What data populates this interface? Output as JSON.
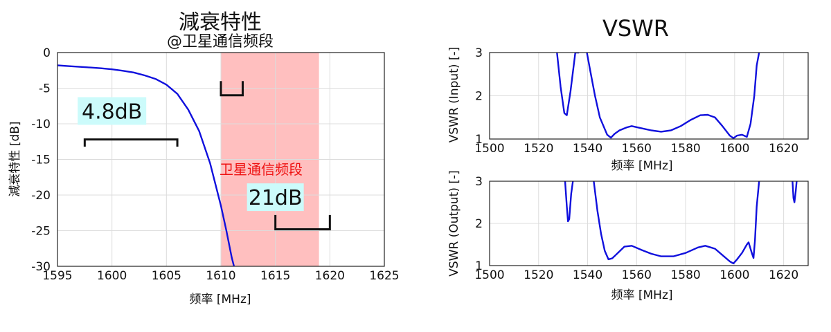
{
  "colors": {
    "curve": "#1010dd",
    "band": "#ffbfbf",
    "band_text": "#ee1111",
    "callout_bg": "#ccfbfb"
  },
  "chart_data": [
    {
      "id": "attenuation",
      "type": "line",
      "title": "減衰特性",
      "subtitle": "@卫星通信频段",
      "xlabel": "频率 [MHz]",
      "ylabel": "減衰特性 [dB]",
      "xlim": [
        1595,
        1625
      ],
      "ylim": [
        -30,
        0
      ],
      "xticks": [
        1595,
        1600,
        1605,
        1610,
        1615,
        1620,
        1625
      ],
      "yticks": [
        0,
        -5,
        -10,
        -15,
        -20,
        -25,
        -30
      ],
      "grid": true,
      "series": [
        {
          "x": [
            1595,
            1596,
            1597,
            1598,
            1599,
            1600,
            1601,
            1602,
            1603,
            1604,
            1605,
            1606,
            1607,
            1608,
            1609,
            1610,
            1610.5,
            1611,
            1611.2
          ],
          "y": [
            -1.8,
            -1.9,
            -2.0,
            -2.1,
            -2.2,
            -2.35,
            -2.55,
            -2.8,
            -3.2,
            -3.7,
            -4.5,
            -5.8,
            -8.0,
            -11.0,
            -15.5,
            -21.5,
            -25.0,
            -28.8,
            -30
          ]
        }
      ],
      "band": {
        "label": "卫星通信频段",
        "x": [
          1610,
          1619
        ]
      },
      "annotations": [
        {
          "text": "4.8dB",
          "x": 1600,
          "y": -8.2
        },
        {
          "text": "21dB",
          "x": 1615,
          "y": -20.3
        }
      ],
      "brackets": [
        {
          "x": [
            1597.5,
            1606
          ],
          "y": -12.2,
          "tick": 1.0,
          "dir": "down"
        },
        {
          "x": [
            1610,
            1612
          ],
          "y": -6.0,
          "tick": 2.0,
          "dir": "up"
        },
        {
          "x": [
            1615,
            1620
          ],
          "y": -24.8,
          "tick": 2.0,
          "dir": "up"
        }
      ]
    },
    {
      "id": "vswr_input",
      "type": "line",
      "group_title": "VSWR",
      "xlabel": "频率 [MHz]",
      "ylabel": "VSWR (Input) [-]",
      "xlim": [
        1500,
        1630
      ],
      "ylim": [
        1,
        3
      ],
      "xticks": [
        1500,
        1520,
        1540,
        1560,
        1580,
        1600,
        1620
      ],
      "yticks": [
        1,
        2,
        3
      ],
      "grid": true,
      "series": [
        {
          "x": [
            1527.5,
            1529,
            1530.5,
            1531.5,
            1533,
            1535,
            1536.5
          ],
          "y": [
            3.0,
            2.2,
            1.6,
            1.55,
            2.1,
            3.0,
            3.0
          ]
        },
        {
          "x": [
            1539.7,
            1541,
            1543,
            1545,
            1548,
            1549.5,
            1551,
            1553,
            1556,
            1558,
            1562,
            1566,
            1570,
            1574,
            1578,
            1582,
            1586,
            1589,
            1592,
            1595,
            1598,
            1599.5,
            1601,
            1603,
            1605,
            1606.5,
            1608,
            1609,
            1610
          ],
          "y": [
            3.0,
            2.6,
            2.0,
            1.5,
            1.1,
            1.03,
            1.12,
            1.2,
            1.27,
            1.3,
            1.25,
            1.2,
            1.17,
            1.2,
            1.3,
            1.44,
            1.55,
            1.56,
            1.5,
            1.3,
            1.08,
            1.02,
            1.08,
            1.1,
            1.05,
            1.35,
            2.0,
            2.7,
            3.0
          ]
        }
      ]
    },
    {
      "id": "vswr_output",
      "type": "line",
      "xlabel": "频率 [MHz]",
      "ylabel": "VSWR (Output) [-]",
      "xlim": [
        1500,
        1630
      ],
      "ylim": [
        1,
        3
      ],
      "xticks": [
        1500,
        1520,
        1540,
        1560,
        1580,
        1600,
        1620
      ],
      "yticks": [
        1,
        2,
        3
      ],
      "grid": true,
      "series": [
        {
          "x": [
            1530.8,
            1531.5,
            1532,
            1532.5,
            1533.3,
            1534
          ],
          "y": [
            3.0,
            2.4,
            2.05,
            2.1,
            2.7,
            3.0
          ]
        },
        {
          "x": [
            1542.5,
            1544,
            1545.5,
            1547,
            1548.5,
            1550,
            1552,
            1555,
            1558,
            1562,
            1566,
            1570,
            1575,
            1580,
            1585,
            1588,
            1592,
            1595,
            1598,
            1599.5,
            1601,
            1603,
            1605,
            1605.7,
            1607,
            1607.7,
            1608.3,
            1609,
            1610
          ],
          "y": [
            3.0,
            2.3,
            1.75,
            1.35,
            1.15,
            1.17,
            1.28,
            1.45,
            1.47,
            1.37,
            1.28,
            1.22,
            1.22,
            1.3,
            1.43,
            1.47,
            1.4,
            1.25,
            1.1,
            1.05,
            1.15,
            1.3,
            1.5,
            1.55,
            1.3,
            1.18,
            1.6,
            2.4,
            3.0
          ]
        },
        {
          "x": [
            1623.6,
            1624,
            1624.4,
            1624.9,
            1625.3
          ],
          "y": [
            3.0,
            2.6,
            2.5,
            2.75,
            3.0
          ]
        }
      ]
    }
  ]
}
